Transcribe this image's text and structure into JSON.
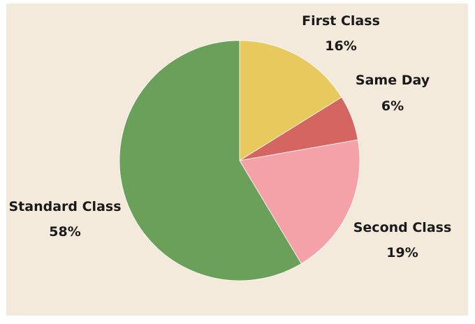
{
  "chart_data": {
    "type": "pie",
    "title": "",
    "slices": [
      {
        "label": "First Class",
        "pct_label": "16%",
        "value": 16,
        "color": "#e8c95e"
      },
      {
        "label": "Same Day",
        "pct_label": "6%",
        "value": 6,
        "color": "#d46561"
      },
      {
        "label": "Second Class",
        "pct_label": "19%",
        "value": 19,
        "color": "#f4a1a8"
      },
      {
        "label": "Standard Class",
        "pct_label": "58%",
        "value": 58,
        "color": "#6ba05a"
      }
    ],
    "start_angle": "12 o'clock, clockwise"
  },
  "background_color": "#f3eadc"
}
